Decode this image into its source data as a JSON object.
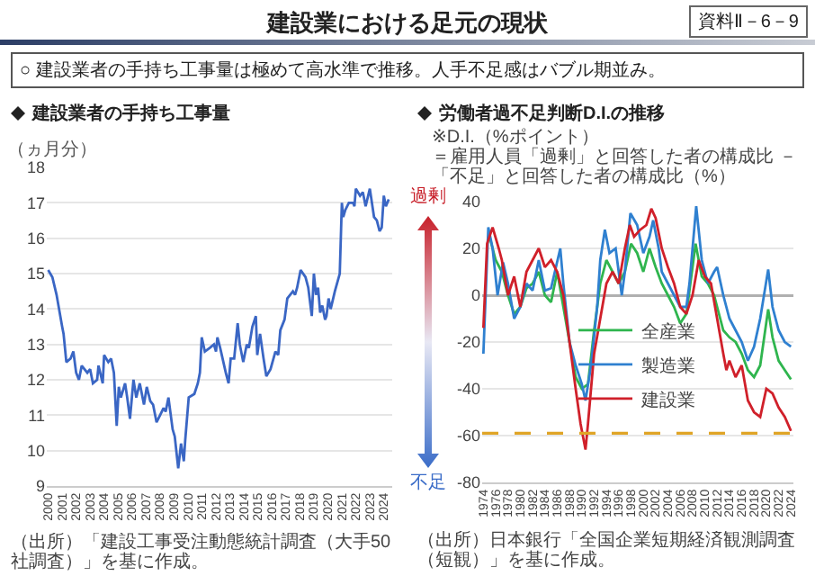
{
  "chart_data": [
    {
      "type": "other",
      "title": "建設業における足元の現状",
      "annotations": [
        "資料Ⅱ－6－9",
        "○ 建設業者の手持ち工事量は極めて高水準で推移。人手不足感はバブル期並み。"
      ]
    },
    {
      "type": "line",
      "title": "建設業者の手持ち工事量",
      "ylabel": "（ヵ月分）",
      "annotations": [
        "（出所）「建設工事受注動態統計調査（大手50社調査）」を基に作成。"
      ],
      "grid": "y",
      "marker": "none",
      "xlim": [
        1999.9,
        2024.6
      ],
      "xticks": [
        2000,
        2001,
        2002,
        2003,
        2004,
        2005,
        2006,
        2007,
        2008,
        2009,
        2010,
        2011,
        2012,
        2013,
        2014,
        2015,
        2016,
        2017,
        2018,
        2019,
        2020,
        2021,
        2022,
        2023,
        2024
      ],
      "ylim": [
        9,
        18
      ],
      "yticks": [
        9,
        10,
        11,
        12,
        13,
        14,
        15,
        16,
        17,
        18
      ],
      "x": [
        2000.0,
        2000.3,
        2000.6,
        2001.0,
        2001.1,
        2001.3,
        2001.6,
        2001.8,
        2002.0,
        2002.2,
        2002.4,
        2002.8,
        2003.0,
        2003.2,
        2003.5,
        2003.6,
        2003.9,
        2004.0,
        2004.3,
        2004.5,
        2004.7,
        2004.9,
        2005.05,
        2005.2,
        2005.5,
        2005.65,
        2005.85,
        2006.1,
        2006.3,
        2006.55,
        2006.85,
        2007.05,
        2007.3,
        2007.5,
        2007.75,
        2008.0,
        2008.25,
        2008.4,
        2008.6,
        2008.9,
        2009.05,
        2009.3,
        2009.5,
        2009.7,
        2009.8,
        2010.05,
        2010.45,
        2010.7,
        2010.85,
        2010.98,
        2011.2,
        2011.55,
        2011.85,
        2012.0,
        2012.1,
        2012.3,
        2012.7,
        2012.9,
        2013.05,
        2013.3,
        2013.55,
        2013.7,
        2013.95,
        2014.2,
        2014.35,
        2014.6,
        2014.85,
        2014.95,
        2015.15,
        2015.4,
        2015.6,
        2015.9,
        2016.25,
        2016.45,
        2016.6,
        2016.9,
        2017.1,
        2017.5,
        2017.65,
        2017.8,
        2018.05,
        2018.4,
        2018.6,
        2018.85,
        2019.0,
        2019.15,
        2019.3,
        2019.45,
        2019.6,
        2019.8,
        2019.9,
        2020.05,
        2020.2,
        2020.5,
        2020.85,
        2021.0,
        2021.1,
        2021.25,
        2021.5,
        2021.8,
        2021.9,
        2022.0,
        2022.3,
        2022.5,
        2022.7,
        2023.0,
        2023.3,
        2023.5,
        2023.7,
        2023.85,
        2024.0,
        2024.15,
        2024.35
      ],
      "series": [
        {
          "color": "#3a66c4",
          "values": [
            15.1,
            14.9,
            14.4,
            13.5,
            13.3,
            12.5,
            12.6,
            12.8,
            12.2,
            12.0,
            12.4,
            12.2,
            12.3,
            11.9,
            12.0,
            12.4,
            11.9,
            12.7,
            12.5,
            12.6,
            12.2,
            10.7,
            11.8,
            11.5,
            11.9,
            11.5,
            10.9,
            12.0,
            11.5,
            11.9,
            11.3,
            11.8,
            11.4,
            11.3,
            10.8,
            11.0,
            11.2,
            11.1,
            11.5,
            10.6,
            10.4,
            9.5,
            10.2,
            9.7,
            10.3,
            11.5,
            11.6,
            11.9,
            12.2,
            13.2,
            12.8,
            12.9,
            13.0,
            12.8,
            13.2,
            12.9,
            12.2,
            11.9,
            12.6,
            12.6,
            13.6,
            13.0,
            12.5,
            13.0,
            12.9,
            13.5,
            13.8,
            12.7,
            13.3,
            12.6,
            12.1,
            12.3,
            12.8,
            12.7,
            13.4,
            13.7,
            14.3,
            14.5,
            14.4,
            14.6,
            15.1,
            14.9,
            14.6,
            13.8,
            15.0,
            14.4,
            14.6,
            13.9,
            14.1,
            13.7,
            13.8,
            14.3,
            14.0,
            14.5,
            15.0,
            17.0,
            16.6,
            16.8,
            17.0,
            17.0,
            16.9,
            17.4,
            17.2,
            17.3,
            16.9,
            17.4,
            16.6,
            16.5,
            16.2,
            16.3,
            17.2,
            16.9,
            17.1
          ]
        }
      ]
    },
    {
      "type": "line",
      "title": "労働者過不足判断D.I.の推移",
      "annotations": [
        "※D.I.（%ポイント）",
        "＝雇用人員「過剰」と回答した者の構成比 －「不足」と回答した者の構成比（%）",
        "過剰",
        "不足",
        "（出所）日本銀行「全国企業短期経済観測調査（短観）」を基に作成。"
      ],
      "grid": "y",
      "legend": "center",
      "marker": "none",
      "xlim": [
        1973.8,
        2024.4
      ],
      "xticks": [
        1974,
        1976,
        1978,
        1980,
        1982,
        1984,
        1986,
        1988,
        1990,
        1992,
        1994,
        1996,
        1998,
        2000,
        2002,
        2004,
        2006,
        2008,
        2010,
        2012,
        2014,
        2016,
        2018,
        2020,
        2022,
        2024
      ],
      "ylim": [
        -80,
        40
      ],
      "yticks": [
        -80,
        -60,
        -40,
        -20,
        0,
        20,
        40
      ],
      "ref_lines": [
        {
          "axis": "y",
          "value": -59,
          "color": "#e0a526",
          "line_style": "dashed"
        }
      ],
      "series": [
        {
          "name": "全産業",
          "color": "#2fb54e",
          "x": [
            1975.0,
            1976.0,
            1977.0,
            1978.0,
            1979.0,
            1980.0,
            1981.0,
            1982.0,
            1983.0,
            1984.0,
            1985.0,
            1986.0,
            1987.0,
            1988.0,
            1989.0,
            1990.0,
            1991.0,
            1992.0,
            1993.0,
            1994.0,
            1995.0,
            1996.0,
            1997.0,
            1998.0,
            1999.0,
            2000.0,
            2001.0,
            2002.0,
            2003.0,
            2004.0,
            2005.0,
            2006.0,
            2007.0,
            2008.5,
            2009.5,
            2010.5,
            2011.5,
            2012.0,
            2013.0,
            2014.0,
            2015.0,
            2016.0,
            2017.0,
            2018.0,
            2019.0,
            2020.3,
            2021.0,
            2022.0,
            2023.0,
            2024.0
          ],
          "values": [
            25,
            15,
            10,
            0,
            -8,
            -5,
            3,
            5,
            10,
            0,
            -3,
            10,
            -5,
            -20,
            -35,
            -40,
            -38,
            -15,
            5,
            15,
            10,
            5,
            10,
            22,
            18,
            10,
            20,
            12,
            5,
            0,
            -5,
            -12,
            -8,
            22,
            8,
            5,
            0,
            -5,
            -15,
            -18,
            -20,
            -25,
            -32,
            -35,
            -30,
            -6,
            -18,
            -28,
            -32,
            -36
          ]
        },
        {
          "name": "製造業",
          "color": "#2f80d0",
          "x": [
            1974.0,
            1974.8,
            1975.5,
            1976.3,
            1977.2,
            1978.0,
            1979.0,
            1980.0,
            1981.0,
            1982.0,
            1983.0,
            1984.0,
            1985.0,
            1986.5,
            1987.0,
            1988.0,
            1989.0,
            1990.0,
            1990.6,
            1991.5,
            1992.5,
            1993.0,
            1993.75,
            1994.5,
            1995.5,
            1996.5,
            1997.0,
            1997.9,
            1999.0,
            2000.0,
            2001.0,
            2001.6,
            2002.5,
            2003.0,
            2004.0,
            2005.0,
            2006.0,
            2007.0,
            2007.5,
            2008.6,
            2009.5,
            2010.5,
            2011.5,
            2012.0,
            2013.0,
            2014.0,
            2015.0,
            2016.0,
            2017.0,
            2018.0,
            2019.0,
            2020.3,
            2021.0,
            2022.0,
            2023.0,
            2024.0
          ],
          "values": [
            -25,
            29,
            20,
            0,
            14,
            5,
            -10,
            -5,
            5,
            2,
            15,
            2,
            3,
            20,
            5,
            -20,
            -30,
            -38,
            -45,
            -30,
            -5,
            15,
            28,
            18,
            20,
            0,
            10,
            35,
            30,
            18,
            25,
            32,
            20,
            10,
            5,
            0,
            -5,
            -5,
            5,
            38,
            15,
            5,
            10,
            12,
            0,
            -10,
            -15,
            -20,
            -28,
            -22,
            -10,
            11,
            -5,
            -15,
            -20,
            -22
          ]
        },
        {
          "name": "建設業",
          "color": "#d0202a",
          "x": [
            1974.0,
            1974.6,
            1975.5,
            1976.5,
            1977.0,
            1978.0,
            1979.0,
            1980.0,
            1981.0,
            1982.0,
            1983.0,
            1984.0,
            1985.0,
            1986.0,
            1987.0,
            1988.0,
            1989.0,
            1989.8,
            1990.6,
            1991.0,
            1992.0,
            1993.0,
            1994.0,
            1995.0,
            1996.0,
            1997.0,
            1997.8,
            1998.5,
            1999.5,
            2000.5,
            2001.3,
            2002.0,
            2003.0,
            2004.0,
            2005.0,
            2006.0,
            2007.0,
            2008.0,
            2009.0,
            2010.0,
            2011.0,
            2012.0,
            2013.0,
            2013.5,
            2014.0,
            2015.0,
            2016.0,
            2017.0,
            2018.0,
            2019.0,
            2020.0,
            2021.0,
            2022.0,
            2023.0,
            2024.0
          ],
          "values": [
            -14,
            22,
            29,
            20,
            15,
            0,
            8,
            -5,
            10,
            15,
            20,
            12,
            15,
            10,
            0,
            -20,
            -40,
            -55,
            -66,
            -55,
            -25,
            -10,
            5,
            10,
            5,
            20,
            30,
            25,
            28,
            30,
            37,
            33,
            20,
            12,
            5,
            -5,
            -8,
            0,
            15,
            8,
            5,
            -10,
            -25,
            -32,
            -28,
            -35,
            -30,
            -45,
            -50,
            -52,
            -40,
            -42,
            -48,
            -52,
            -58
          ]
        }
      ]
    }
  ]
}
